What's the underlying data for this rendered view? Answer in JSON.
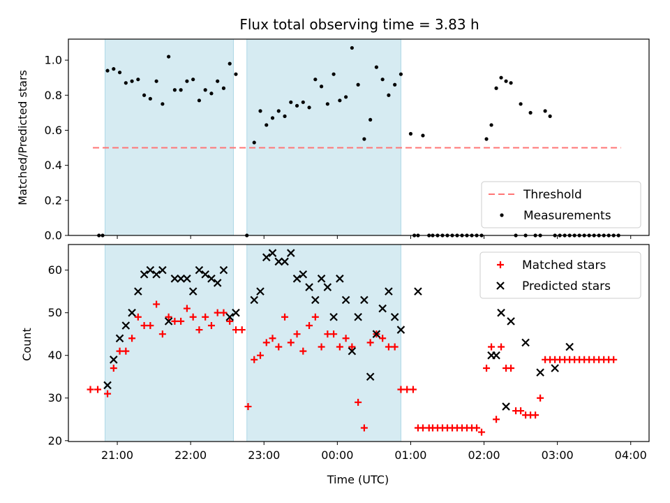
{
  "chart_data": [
    {
      "type": "scatter",
      "title": "Flux total observing time = 3.83 h",
      "xlabel": "",
      "ylabel": "Matched/Predicted stars",
      "xlim": [
        "20:20",
        "04:15"
      ],
      "ylim": [
        0,
        1.12
      ],
      "yticks": [
        0.0,
        0.2,
        0.4,
        0.6,
        0.8,
        1.0
      ],
      "ytick_labels": [
        "0.0",
        "0.2",
        "0.4",
        "0.6",
        "0.8",
        "1.0"
      ],
      "grid": false,
      "shaded_intervals": [
        [
          "20:50",
          "22:35"
        ],
        [
          "22:46",
          "00:52"
        ]
      ],
      "legend_position": "lower-right",
      "threshold": {
        "name": "Threshold",
        "value": 0.5,
        "x_range": [
          "20:40",
          "03:52"
        ],
        "color": "#ff7575"
      },
      "series": [
        {
          "name": "Measurements",
          "color": "#000000",
          "marker": "dot",
          "x": [
            "20:45",
            "20:48",
            "20:52",
            "20:57",
            "21:02",
            "21:07",
            "21:12",
            "21:17",
            "21:22",
            "21:27",
            "21:32",
            "21:37",
            "21:42",
            "21:47",
            "21:52",
            "21:57",
            "22:02",
            "22:07",
            "22:12",
            "22:17",
            "22:22",
            "22:27",
            "22:32",
            "22:37",
            "22:46",
            "22:52",
            "22:57",
            "23:02",
            "23:07",
            "23:12",
            "23:17",
            "23:22",
            "23:27",
            "23:32",
            "23:37",
            "23:42",
            "23:47",
            "23:52",
            "23:57",
            "00:02",
            "00:07",
            "00:12",
            "00:17",
            "00:22",
            "00:27",
            "00:32",
            "00:37",
            "00:42",
            "00:47",
            "00:52",
            "01:00",
            "01:03",
            "01:06",
            "01:10",
            "01:15",
            "01:18",
            "01:22",
            "01:26",
            "01:30",
            "01:34",
            "01:38",
            "01:42",
            "01:46",
            "01:50",
            "01:54",
            "01:58",
            "02:02",
            "02:06",
            "02:10",
            "02:14",
            "02:18",
            "02:22",
            "02:26",
            "02:30",
            "02:34",
            "02:38",
            "02:42",
            "02:46",
            "02:50",
            "02:54",
            "02:58",
            "03:02",
            "03:06",
            "03:10",
            "03:14",
            "03:18",
            "03:22",
            "03:26",
            "03:30",
            "03:34",
            "03:38",
            "03:42",
            "03:46",
            "03:50"
          ],
          "y": [
            0.0,
            0.0,
            0.94,
            0.95,
            0.93,
            0.87,
            0.88,
            0.89,
            0.8,
            0.78,
            0.88,
            0.75,
            1.02,
            0.83,
            0.83,
            0.88,
            0.89,
            0.77,
            0.83,
            0.81,
            0.88,
            0.84,
            0.98,
            0.92,
            0.0,
            0.53,
            0.71,
            0.63,
            0.67,
            0.71,
            0.68,
            0.76,
            0.74,
            0.76,
            0.73,
            0.89,
            0.85,
            0.75,
            0.92,
            0.77,
            0.79,
            1.07,
            0.86,
            0.55,
            0.66,
            0.96,
            0.89,
            0.8,
            0.86,
            0.92,
            0.58,
            0.0,
            0.0,
            0.57,
            0.0,
            0.0,
            0.0,
            0.0,
            0.0,
            0.0,
            0.0,
            0.0,
            0.0,
            0.0,
            0.0,
            0.0,
            0.55,
            0.63,
            0.84,
            0.9,
            0.88,
            0.87,
            0.0,
            0.75,
            0.0,
            0.7,
            0.0,
            0.0,
            0.71,
            0.68,
            0.0,
            0.0,
            0.0,
            0.0,
            0.0,
            0.0,
            0.0,
            0.0,
            0.0,
            0.0,
            0.0,
            0.0,
            0.0,
            0.0
          ]
        }
      ]
    },
    {
      "type": "scatter",
      "title": "",
      "xlabel": "Time (UTC)",
      "ylabel": "Count",
      "xlim": [
        "20:20",
        "04:15"
      ],
      "ylim": [
        19.8,
        66
      ],
      "xticks": [
        "21:00",
        "22:00",
        "23:00",
        "00:00",
        "01:00",
        "02:00",
        "03:00",
        "04:00"
      ],
      "yticks": [
        20,
        30,
        40,
        50,
        60
      ],
      "ytick_labels": [
        "20",
        "30",
        "40",
        "50",
        "60"
      ],
      "grid": false,
      "shaded_intervals": [
        [
          "20:50",
          "22:35"
        ],
        [
          "22:46",
          "00:52"
        ]
      ],
      "legend_position": "upper-right",
      "series": [
        {
          "name": "Matched stars",
          "color": "#ff0000",
          "marker": "plus",
          "x": [
            "20:38",
            "20:44",
            "20:52",
            "20:57",
            "21:02",
            "21:07",
            "21:12",
            "21:17",
            "21:22",
            "21:27",
            "21:32",
            "21:37",
            "21:42",
            "21:47",
            "21:52",
            "21:57",
            "22:02",
            "22:07",
            "22:12",
            "22:17",
            "22:22",
            "22:27",
            "22:32",
            "22:37",
            "22:42",
            "22:47",
            "22:52",
            "22:57",
            "23:02",
            "23:07",
            "23:12",
            "23:17",
            "23:22",
            "23:27",
            "23:32",
            "23:37",
            "23:42",
            "23:47",
            "23:52",
            "23:57",
            "00:02",
            "00:07",
            "00:12",
            "00:17",
            "00:22",
            "00:27",
            "00:32",
            "00:37",
            "00:42",
            "00:47",
            "00:52",
            "00:57",
            "01:02",
            "01:06",
            "01:10",
            "01:15",
            "01:18",
            "01:22",
            "01:26",
            "01:30",
            "01:34",
            "01:38",
            "01:42",
            "01:46",
            "01:50",
            "01:54",
            "01:58",
            "02:02",
            "02:06",
            "02:10",
            "02:14",
            "02:18",
            "02:22",
            "02:26",
            "02:30",
            "02:34",
            "02:38",
            "02:42",
            "02:46",
            "02:50",
            "02:54",
            "02:58",
            "03:02",
            "03:06",
            "03:10",
            "03:14",
            "03:18",
            "03:22",
            "03:26",
            "03:30",
            "03:34",
            "03:38",
            "03:42",
            "03:46"
          ],
          "y": [
            32,
            32,
            31,
            37,
            41,
            41,
            44,
            49,
            47,
            47,
            52,
            45,
            49,
            48,
            48,
            51,
            49,
            46,
            49,
            47,
            50,
            50,
            48,
            46,
            46,
            28,
            39,
            40,
            43,
            44,
            42,
            49,
            43,
            45,
            41,
            47,
            49,
            42,
            45,
            45,
            42,
            44,
            42,
            29,
            23,
            43,
            45,
            44,
            42,
            42,
            32,
            32,
            32,
            23,
            23,
            23,
            23,
            23,
            23,
            23,
            23,
            23,
            23,
            23,
            23,
            23,
            22,
            37,
            42,
            25,
            42,
            37,
            37,
            27,
            27,
            26,
            26,
            26,
            30,
            39,
            39,
            39,
            39,
            39,
            39,
            39,
            39,
            39,
            39,
            39,
            39,
            39,
            39,
            39
          ],
          "_note_x": "matched x aligned with predicted where present"
        },
        {
          "name": "Predicted stars",
          "color": "#000000",
          "marker": "x",
          "x": [
            "20:52",
            "20:57",
            "21:02",
            "21:07",
            "21:12",
            "21:17",
            "21:22",
            "21:27",
            "21:32",
            "21:37",
            "21:42",
            "21:47",
            "21:52",
            "21:57",
            "22:02",
            "22:07",
            "22:12",
            "22:17",
            "22:22",
            "22:27",
            "22:32",
            "22:37",
            "22:52",
            "22:57",
            "23:02",
            "23:07",
            "23:12",
            "23:17",
            "23:22",
            "23:27",
            "23:32",
            "23:37",
            "23:42",
            "23:47",
            "23:52",
            "23:57",
            "00:02",
            "00:07",
            "00:12",
            "00:17",
            "00:22",
            "00:27",
            "00:32",
            "00:37",
            "00:42",
            "00:47",
            "00:52",
            "01:06",
            "02:06",
            "02:10",
            "02:14",
            "02:18",
            "02:22",
            "02:34",
            "02:46",
            "02:58",
            "03:10"
          ],
          "y": [
            33,
            39,
            44,
            47,
            50,
            55,
            59,
            60,
            59,
            60,
            48,
            58,
            58,
            58,
            55,
            60,
            59,
            58,
            57,
            60,
            49,
            50,
            53,
            55,
            63,
            64,
            62,
            62,
            64,
            58,
            59,
            56,
            53,
            58,
            56,
            49,
            58,
            53,
            41,
            49,
            53,
            35,
            45,
            51,
            55,
            49,
            46,
            55,
            40,
            40,
            50,
            28,
            48,
            43,
            36,
            37,
            42
          ]
        }
      ]
    }
  ]
}
